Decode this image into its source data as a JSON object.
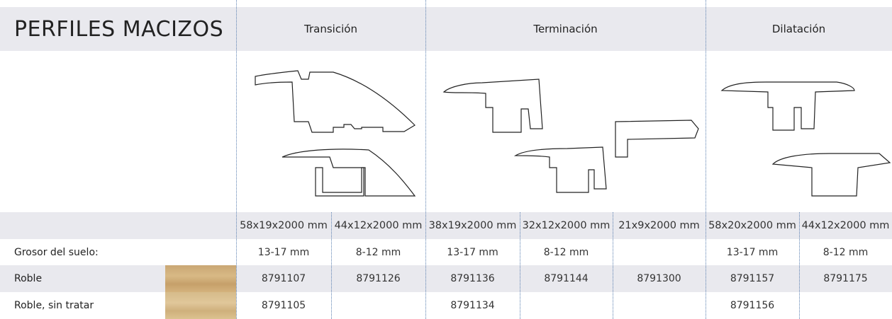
{
  "header": {
    "title": "PERFILES MACIZOS",
    "groups": [
      "Transición",
      "Terminación",
      "Dilatación"
    ]
  },
  "table": {
    "sizes": [
      "58x19x2000 mm",
      "44x12x2000 mm",
      "38x19x2000 mm",
      "32x12x2000 mm",
      "21x9x2000 mm",
      "58x20x2000 mm",
      "44x12x2000 mm"
    ],
    "rows": [
      {
        "label": "Grosor del suelo:",
        "cells": [
          "13-17 mm",
          "8-12 mm",
          "13-17 mm",
          "8-12 mm",
          null,
          "13-17 mm",
          "8-12 mm"
        ]
      },
      {
        "label": "Roble",
        "cells": [
          "8791107",
          "8791126",
          "8791136",
          "8791144",
          "8791300",
          "8791157",
          "8791175"
        ]
      },
      {
        "label": "Roble, sin tratar",
        "cells": [
          "8791105",
          null,
          "8791134",
          null,
          null,
          "8791156",
          null
        ]
      }
    ]
  }
}
